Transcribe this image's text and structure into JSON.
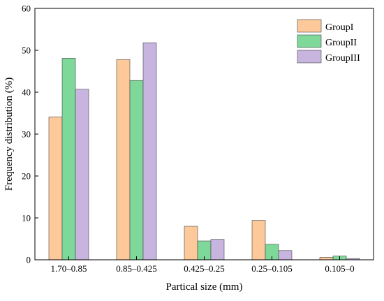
{
  "chart_data": {
    "type": "bar",
    "xlabel": "Partical size (mm)",
    "ylabel": "Frequency distribution (%)",
    "ylim": [
      0,
      60
    ],
    "yticks": [
      0,
      10,
      20,
      30,
      40,
      50,
      60
    ],
    "categories": [
      "1.70–0.85",
      "0.85–0.425",
      "0.425–0.25",
      "0.25–0.105",
      "0.105–0"
    ],
    "series": [
      {
        "name": "GroupI",
        "color": "#FDC89A",
        "values": [
          34.1,
          47.8,
          8.0,
          9.4,
          0.6
        ]
      },
      {
        "name": "GroupII",
        "color": "#7DD89A",
        "values": [
          48.1,
          42.8,
          4.5,
          3.7,
          0.9
        ]
      },
      {
        "name": "GroupIII",
        "color": "#C7B5E0",
        "values": [
          40.7,
          51.8,
          4.9,
          2.2,
          0.3
        ]
      }
    ],
    "legend_position": "top-right",
    "grid": false
  }
}
